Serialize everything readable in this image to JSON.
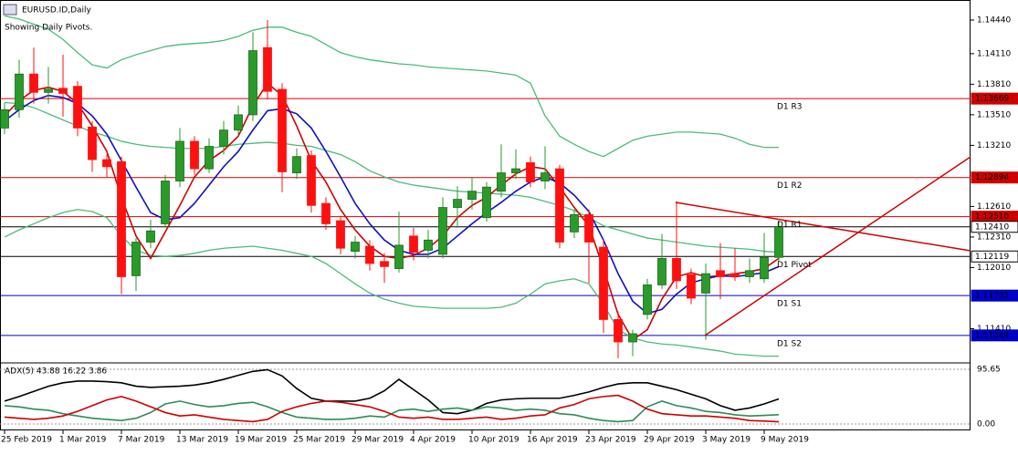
{
  "chart_data": [
    {
      "type": "candlestick",
      "title": "EURUSD.ID,Daily",
      "subtitle": "Showing Daily Pivots.",
      "categories": [
        "25 Feb 2019",
        null,
        null,
        null,
        "1 Mar 2019",
        null,
        null,
        null,
        "7 Mar 2019",
        null,
        null,
        null,
        "13 Mar 2019",
        null,
        null,
        null,
        "19 Mar 2019",
        null,
        null,
        null,
        "25 Mar 2019",
        null,
        null,
        null,
        "29 Mar 2019",
        null,
        null,
        null,
        "4 Apr 2019",
        null,
        null,
        null,
        "10 Apr 2019",
        null,
        null,
        null,
        "16 Apr 2019",
        null,
        null,
        null,
        "23 Apr 2019",
        null,
        null,
        null,
        "29 Apr 2019",
        null,
        null,
        null,
        "3 May 2019",
        null,
        null,
        null,
        "9 May 2019",
        null
      ],
      "open": [
        1.1338,
        1.1356,
        1.1391,
        1.1373,
        1.1377,
        1.1379,
        1.1339,
        1.1307,
        1.1305,
        1.1193,
        1.1226,
        1.1244,
        1.1286,
        1.1325,
        1.1298,
        1.132,
        1.1336,
        1.1351,
        1.1417,
        1.1376,
        1.1294,
        1.1311,
        1.1264,
        1.1247,
        1.1217,
        1.1222,
        1.1207,
        1.12,
        1.1232,
        1.1218,
        1.1214,
        1.126,
        1.1268,
        1.125,
        1.1276,
        1.1294,
        1.1304,
        1.1286,
        1.1298,
        1.1236,
        1.1253,
        1.1221,
        1.115,
        1.1128,
        1.1155,
        1.1184,
        1.121,
        1.1194,
        1.1176,
        1.1198,
        1.1195,
        1.1192,
        1.119,
        1.1211
      ],
      "high": [
        1.1363,
        1.1405,
        1.1417,
        1.1398,
        1.141,
        1.1384,
        1.1345,
        1.1312,
        1.131,
        1.123,
        1.1248,
        1.1292,
        1.1338,
        1.133,
        1.1328,
        1.1345,
        1.136,
        1.1432,
        1.1444,
        1.1382,
        1.1318,
        1.1316,
        1.127,
        1.1252,
        1.1232,
        1.1228,
        1.1215,
        1.1256,
        1.124,
        1.1238,
        1.127,
        1.1281,
        1.1289,
        1.1285,
        1.1322,
        1.1317,
        1.131,
        1.132,
        1.1302,
        1.1258,
        1.1258,
        1.1228,
        1.1158,
        1.114,
        1.119,
        1.1234,
        1.1266,
        1.12,
        1.1205,
        1.1225,
        1.122,
        1.121,
        1.1235,
        1.1247
      ],
      "low": [
        1.1332,
        1.1348,
        1.1362,
        1.1362,
        1.1349,
        1.133,
        1.1295,
        1.129,
        1.1175,
        1.1178,
        1.122,
        1.124,
        1.128,
        1.1292,
        1.1294,
        1.1312,
        1.133,
        1.1345,
        1.1366,
        1.1275,
        1.1288,
        1.1255,
        1.1238,
        1.1214,
        1.121,
        1.1198,
        1.1186,
        1.1196,
        1.1208,
        1.121,
        1.121,
        1.124,
        1.1258,
        1.1246,
        1.127,
        1.1288,
        1.128,
        1.1278,
        1.122,
        1.123,
        1.1186,
        1.1137,
        1.1112,
        1.1114,
        1.115,
        1.118,
        1.118,
        1.1165,
        1.113,
        1.117,
        1.1188,
        1.1186,
        1.1186,
        1.1207
      ],
      "close": [
        1.1356,
        1.1391,
        1.1373,
        1.1376,
        1.1372,
        1.1338,
        1.1307,
        1.13,
        1.1192,
        1.1226,
        1.1237,
        1.1286,
        1.1325,
        1.1298,
        1.132,
        1.1336,
        1.1351,
        1.1414,
        1.1374,
        1.1295,
        1.131,
        1.1262,
        1.1244,
        1.122,
        1.1226,
        1.1205,
        1.1202,
        1.1223,
        1.1216,
        1.1228,
        1.126,
        1.1268,
        1.1276,
        1.128,
        1.1294,
        1.1298,
        1.1285,
        1.1294,
        1.1226,
        1.1253,
        1.1226,
        1.115,
        1.1128,
        1.1136,
        1.1184,
        1.121,
        1.1188,
        1.1171,
        1.1195,
        1.1192,
        1.1192,
        1.1198,
        1.1211,
        1.1241
      ],
      "up_color": "#2a9a2a",
      "down_color": "#ff1010",
      "lines": [
        {
          "color": "#4dbb7a",
          "values": [
            1.1448,
            1.1445,
            1.144,
            1.1435,
            1.1425,
            1.1412,
            1.14,
            1.1397,
            1.1405,
            1.141,
            1.1414,
            1.1418,
            1.142,
            1.1421,
            1.1422,
            1.1424,
            1.1428,
            1.1434,
            1.1437,
            1.1437,
            1.1432,
            1.1428,
            1.142,
            1.1412,
            1.1408,
            1.1405,
            1.1403,
            1.1401,
            1.14,
            1.1398,
            1.1397,
            1.1396,
            1.1395,
            1.1394,
            1.1392,
            1.139,
            1.1382,
            1.135,
            1.133,
            1.1322,
            1.1315,
            1.131,
            1.1318,
            1.1326,
            1.133,
            1.1332,
            1.1334,
            1.1334,
            1.1333,
            1.1332,
            1.1328,
            1.1322,
            1.1319,
            1.1319
          ]
        },
        {
          "color": "#4dbb7a",
          "values": [
            1.1363,
            1.1362,
            1.1358,
            1.1352,
            1.1346,
            1.134,
            1.1334,
            1.133,
            1.1325,
            1.1322,
            1.132,
            1.1319,
            1.1318,
            1.1318,
            1.1318,
            1.132,
            1.1322,
            1.1323,
            1.1324,
            1.1323,
            1.1321,
            1.132,
            1.1316,
            1.1312,
            1.1305,
            1.1296,
            1.129,
            1.1285,
            1.1282,
            1.128,
            1.1278,
            1.1276,
            1.1275,
            1.1274,
            1.1273,
            1.1272,
            1.127,
            1.1266,
            1.1262,
            1.1257,
            1.125,
            1.1242,
            1.1238,
            1.1234,
            1.123,
            1.1228,
            1.1226,
            1.1224,
            1.1222,
            1.1221,
            1.122,
            1.1219,
            1.1217,
            1.1216
          ]
        },
        {
          "color": "#4dbb7a",
          "values": [
            1.1231,
            1.1238,
            1.1244,
            1.125,
            1.1255,
            1.1258,
            1.1256,
            1.125,
            1.1232,
            1.1218,
            1.1213,
            1.1212,
            1.1213,
            1.1215,
            1.1218,
            1.122,
            1.1221,
            1.1222,
            1.122,
            1.1218,
            1.1215,
            1.1212,
            1.1205,
            1.1195,
            1.1185,
            1.1176,
            1.117,
            1.1166,
            1.1163,
            1.1162,
            1.1161,
            1.1161,
            1.1161,
            1.1161,
            1.1162,
            1.1166,
            1.1175,
            1.1185,
            1.1188,
            1.119,
            1.1185,
            1.1165,
            1.114,
            1.1132,
            1.1128,
            1.1126,
            1.1125,
            1.1123,
            1.1121,
            1.1119,
            1.1116,
            1.1115,
            1.1114,
            1.1114
          ]
        },
        {
          "color": "#d00000",
          "values": [
            1.135,
            1.1365,
            1.1375,
            1.1378,
            1.1374,
            1.1362,
            1.134,
            1.1315,
            1.127,
            1.1232,
            1.121,
            1.1236,
            1.1262,
            1.129,
            1.1306,
            1.1316,
            1.133,
            1.136,
            1.1382,
            1.137,
            1.134,
            1.1306,
            1.1285,
            1.1258,
            1.1238,
            1.1222,
            1.1212,
            1.121,
            1.1213,
            1.122,
            1.1232,
            1.125,
            1.1262,
            1.127,
            1.1282,
            1.1293,
            1.13,
            1.1298,
            1.128,
            1.126,
            1.1242,
            1.12,
            1.1155,
            1.113,
            1.114,
            1.117,
            1.1192,
            1.1196,
            1.1192,
            1.1193,
            1.1195,
            1.1197,
            1.12,
            1.121
          ]
        },
        {
          "color": "#1010c0",
          "values": [
            1.1345,
            1.1356,
            1.1365,
            1.137,
            1.1368,
            1.1362,
            1.135,
            1.1332,
            1.1306,
            1.128,
            1.1255,
            1.1248,
            1.125,
            1.1264,
            1.1282,
            1.13,
            1.1315,
            1.1336,
            1.1355,
            1.1357,
            1.1352,
            1.1338,
            1.1315,
            1.129,
            1.1264,
            1.1244,
            1.1228,
            1.1218,
            1.1214,
            1.1214,
            1.122,
            1.1232,
            1.1244,
            1.1255,
            1.1265,
            1.1276,
            1.1285,
            1.129,
            1.1284,
            1.1272,
            1.1256,
            1.1228,
            1.1195,
            1.1168,
            1.1156,
            1.116,
            1.1175,
            1.1186,
            1.119,
            1.1193,
            1.1192,
            1.1194,
            1.1196,
            1.1202
          ]
        }
      ],
      "levels": [
        {
          "name": "D1 R3",
          "price": 1.13669,
          "color": "#d00000"
        },
        {
          "name": "D1 R2",
          "price": 1.12894,
          "color": "#d00000"
        },
        {
          "name": "D1 R1",
          "price": {
            "value": 1.1251,
            "label": "1.12510"
          },
          "color": "#d00000"
        },
        {
          "name": "D1 Pivot",
          "price": 1.12119,
          "color": "#000000"
        },
        {
          "name": "D1 S1",
          "price": 1.11735,
          "color": "#0000c8"
        },
        {
          "name": "D1 S2",
          "price": 1.11344,
          "color": "#0000c8"
        }
      ],
      "last_price": {
        "value": 1.1241,
        "label": "1.12410"
      },
      "ylim": [
        1.11083,
        1.14637
      ],
      "yticks": [
        {
          "value": 1.1444,
          "label": "1.14440"
        },
        {
          "value": 1.1411,
          "label": "1.14110"
        },
        {
          "value": 1.1381,
          "label": "1.13810"
        },
        {
          "value": 1.1351,
          "label": "1.13510"
        },
        {
          "value": 1.1321,
          "label": "1.13210"
        },
        {
          "value": 1.1261,
          "label": "1.12610"
        },
        {
          "value": 1.1231,
          "label": "1.12310"
        },
        {
          "value": 1.1201,
          "label": "1.12010"
        },
        {
          "value": 1.1141,
          "label": "1.11410"
        }
      ]
    },
    {
      "type": "line",
      "title": "ADX(5) 43.88 16.22 3.86",
      "ylim": [
        -11.2,
        103.6
      ],
      "yticks": [
        95.65,
        {
          "value": 0,
          "label": "0.00"
        }
      ],
      "series": [
        {
          "color": "#000000",
          "values": [
            40,
            48,
            57,
            66,
            72,
            75,
            75,
            74,
            72,
            66,
            64,
            65,
            66,
            68,
            72,
            78,
            85,
            92,
            95,
            84,
            62,
            45,
            40,
            40,
            40,
            45,
            58,
            78,
            60,
            42,
            20,
            18,
            24,
            36,
            42,
            44,
            45,
            45,
            45,
            50,
            56,
            64,
            70,
            72,
            72,
            66,
            60,
            52,
            44,
            32,
            24,
            28,
            35,
            43.88
          ]
        },
        {
          "color": "#2e8b57",
          "values": [
            32,
            30,
            26,
            24,
            18,
            14,
            10,
            8,
            6,
            10,
            20,
            35,
            40,
            34,
            30,
            32,
            36,
            38,
            30,
            20,
            12,
            10,
            8,
            8,
            10,
            14,
            12,
            24,
            26,
            22,
            26,
            28,
            24,
            30,
            28,
            24,
            26,
            24,
            18,
            16,
            10,
            6,
            4,
            6,
            30,
            40,
            32,
            28,
            22,
            20,
            16,
            14,
            15,
            16.22
          ]
        },
        {
          "color": "#d00000",
          "values": [
            12,
            10,
            8,
            10,
            14,
            22,
            32,
            42,
            48,
            40,
            30,
            20,
            14,
            16,
            12,
            8,
            6,
            4,
            8,
            22,
            30,
            36,
            40,
            38,
            34,
            30,
            22,
            12,
            10,
            12,
            8,
            8,
            10,
            12,
            8,
            10,
            14,
            16,
            28,
            34,
            44,
            48,
            50,
            40,
            26,
            18,
            16,
            14,
            14,
            12,
            10,
            6,
            5,
            3.86
          ]
        }
      ]
    }
  ]
}
